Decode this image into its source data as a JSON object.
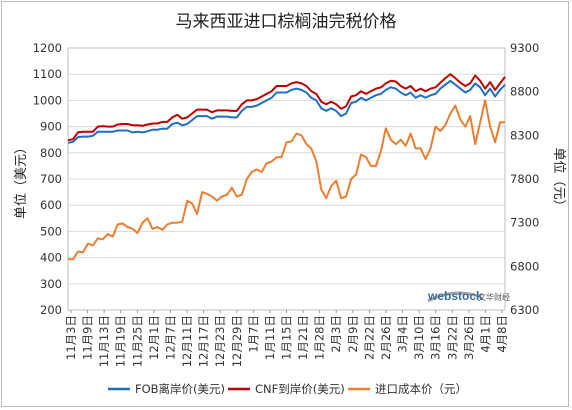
{
  "chart_data": {
    "type": "line",
    "title": "马来西亚进口棕榈油完税价格",
    "y_left": {
      "label": "单位（美元）",
      "range": [
        200,
        1200
      ],
      "ticks": [
        200,
        300,
        400,
        500,
        600,
        700,
        800,
        900,
        1000,
        1100,
        1200
      ]
    },
    "y_right": {
      "label": "单位（元）",
      "range": [
        6300,
        9300
      ],
      "ticks": [
        6300,
        6800,
        7300,
        7800,
        8300,
        8800,
        9300
      ]
    },
    "x_tick_labels": [
      "11月3日",
      "11月9日",
      "11月13日",
      "11月19日",
      "11月25日",
      "12月1日",
      "12月7日",
      "12月11日",
      "12月17日",
      "12月23日",
      "12月29日",
      "1月7日",
      "1月11日",
      "1月15日",
      "1月21日",
      "1月28日",
      "2月3日",
      "2月9日",
      "2月22日",
      "2月26日",
      "3月4日",
      "3月10日",
      "3月16日",
      "3月22日",
      "3月26日",
      "4月1日",
      "4月8日"
    ],
    "x_count": 89,
    "legend": {
      "position": "bottom"
    },
    "grid": true,
    "series": [
      {
        "name": "FOB离岸价(美元)",
        "axis": "left",
        "color": "#1f6fbf",
        "values": [
          838,
          842,
          860,
          862,
          862,
          865,
          880,
          880,
          880,
          880,
          885,
          885,
          885,
          878,
          880,
          878,
          882,
          888,
          888,
          892,
          892,
          910,
          915,
          905,
          910,
          925,
          940,
          940,
          940,
          930,
          938,
          938,
          938,
          935,
          935,
          960,
          975,
          975,
          980,
          990,
          1000,
          1010,
          1030,
          1030,
          1030,
          1040,
          1045,
          1040,
          1030,
          1010,
          1000,
          970,
          960,
          970,
          960,
          940,
          950,
          990,
          995,
          1010,
          1000,
          1010,
          1020,
          1025,
          1040,
          1050,
          1045,
          1030,
          1020,
          1030,
          1010,
          1020,
          1010,
          1020,
          1025,
          1045,
          1060,
          1075,
          1060,
          1045,
          1030,
          1040,
          1065,
          1050,
          1020,
          1045,
          1015,
          1040,
          1060
        ]
      },
      {
        "name": "CNF到岸价(美元)",
        "axis": "left",
        "color": "#c00000",
        "values": [
          848,
          852,
          878,
          880,
          880,
          880,
          900,
          902,
          900,
          900,
          908,
          910,
          910,
          905,
          905,
          903,
          908,
          912,
          912,
          918,
          918,
          935,
          945,
          930,
          935,
          950,
          965,
          965,
          965,
          955,
          962,
          962,
          962,
          960,
          960,
          985,
          1000,
          1000,
          1005,
          1015,
          1025,
          1035,
          1055,
          1055,
          1055,
          1065,
          1070,
          1065,
          1055,
          1035,
          1025,
          995,
          985,
          995,
          985,
          968,
          978,
          1015,
          1020,
          1035,
          1025,
          1035,
          1045,
          1050,
          1065,
          1075,
          1072,
          1055,
          1045,
          1055,
          1035,
          1045,
          1035,
          1045,
          1050,
          1068,
          1085,
          1100,
          1085,
          1068,
          1055,
          1065,
          1095,
          1075,
          1045,
          1070,
          1040,
          1065,
          1090
        ]
      },
      {
        "name": "进口成本价（元）",
        "axis": "right",
        "color": "#ed7d31",
        "values": [
          6880,
          6880,
          6970,
          6960,
          7060,
          7040,
          7120,
          7110,
          7170,
          7140,
          7280,
          7290,
          7250,
          7230,
          7180,
          7300,
          7350,
          7230,
          7250,
          7220,
          7280,
          7300,
          7300,
          7310,
          7550,
          7520,
          7400,
          7650,
          7630,
          7600,
          7550,
          7600,
          7620,
          7700,
          7600,
          7620,
          7800,
          7880,
          7910,
          7880,
          7980,
          8000,
          8050,
          8050,
          8220,
          8230,
          8320,
          8300,
          8200,
          8150,
          8000,
          7680,
          7580,
          7720,
          7780,
          7580,
          7600,
          7800,
          7850,
          8080,
          8050,
          7950,
          7950,
          8120,
          8380,
          8250,
          8200,
          8250,
          8180,
          8320,
          8150,
          8150,
          8030,
          8150,
          8400,
          8350,
          8420,
          8550,
          8640,
          8480,
          8400,
          8520,
          8200,
          8450,
          8700,
          8400,
          8220,
          8450,
          8450
        ]
      }
    ]
  },
  "watermark": {
    "brand": "webstock",
    "tagline": "文华财经"
  }
}
